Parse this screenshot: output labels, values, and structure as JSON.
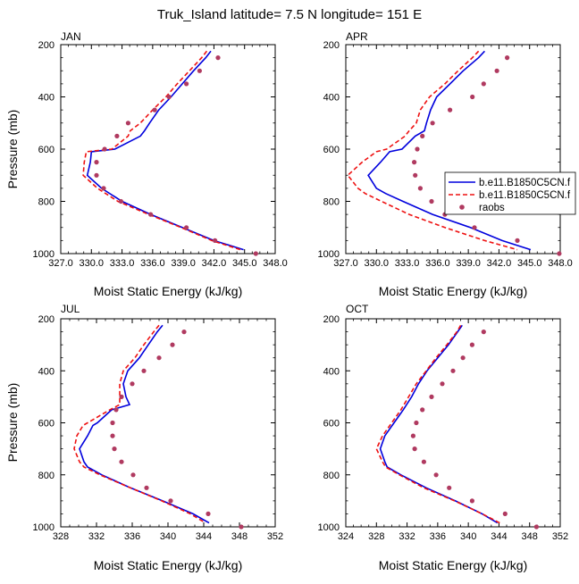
{
  "figure": {
    "title": "Truk_Island  latitude= 7.5 N longitude= 151 E"
  },
  "legend": {
    "entries": [
      {
        "label": "b.e11.B1850C5CN.f",
        "style": "solid-line",
        "color": "#0000dd"
      },
      {
        "label": "b.e11.B1850C5CN.f",
        "style": "dashed-line",
        "color": "#ee1111"
      },
      {
        "label": "raobs",
        "style": "dot",
        "color": "#b03a60"
      }
    ]
  },
  "colors": {
    "model_solid": "#0000dd",
    "model_dashed": "#ee1111",
    "raobs": "#b03a60"
  },
  "chart_data": [
    {
      "type": "line",
      "panel": "JAN",
      "xlabel": "Moist Static Energy (kJ/kg)",
      "ylabel": "Pressure (mb)",
      "xlim": [
        327,
        348
      ],
      "ylim": [
        200,
        1000
      ],
      "y_inverted": true,
      "xticks": [
        "327.0",
        "330.0",
        "333.0",
        "336.0",
        "339.0",
        "342.0",
        "345.0",
        "348.0"
      ],
      "yticks": [
        "200",
        "400",
        "600",
        "800",
        "1000"
      ],
      "pressure": [
        225,
        250,
        300,
        350,
        400,
        450,
        500,
        530,
        550,
        600,
        610,
        650,
        700,
        750,
        800,
        850,
        900,
        950,
        985
      ],
      "series": [
        {
          "values": [
            341.7,
            341.2,
            340.0,
            338.9,
            337.8,
            336.6,
            335.7,
            335.2,
            334.8,
            332.3,
            330.0,
            329.9,
            329.6,
            331.0,
            333.0,
            335.8,
            338.9,
            342.0,
            344.9
          ]
        },
        {
          "values": [
            341.3,
            340.8,
            339.6,
            338.4,
            337.3,
            336.0,
            334.8,
            333.8,
            333.6,
            332.0,
            329.5,
            329.3,
            329.2,
            330.6,
            332.6,
            335.6,
            338.8,
            341.8,
            344.6
          ]
        },
        {
          "pressure": [
            250,
            300,
            350,
            400,
            450,
            500,
            550,
            600,
            650,
            700,
            750,
            800,
            850,
            900,
            950,
            1000
          ],
          "values": [
            342.4,
            340.6,
            339.3,
            337.6,
            336.2,
            333.6,
            332.5,
            331.3,
            330.5,
            330.5,
            331.2,
            332.9,
            335.8,
            339.3,
            342.1,
            346.1
          ]
        }
      ]
    },
    {
      "type": "line",
      "panel": "APR",
      "xlabel": "Moist Static Energy (kJ/kg)",
      "ylabel": "",
      "xlim": [
        327,
        348
      ],
      "ylim": [
        200,
        1000
      ],
      "y_inverted": true,
      "xticks": [
        "327.0",
        "330.0",
        "333.0",
        "336.0",
        "339.0",
        "342.0",
        "345.0",
        "348.0"
      ],
      "yticks": [
        "200",
        "400",
        "600",
        "800",
        "1000"
      ],
      "pressure": [
        225,
        250,
        300,
        350,
        400,
        450,
        500,
        530,
        550,
        600,
        610,
        650,
        700,
        750,
        770,
        800,
        850,
        900,
        950,
        985
      ],
      "series": [
        {
          "values": [
            340.6,
            340.0,
            338.5,
            337.2,
            335.9,
            335.3,
            334.9,
            334.7,
            333.8,
            332.5,
            331.3,
            330.4,
            329.2,
            330.0,
            330.9,
            332.6,
            335.5,
            339.2,
            342.3,
            345.1
          ]
        },
        {
          "values": [
            340.0,
            339.4,
            338.0,
            336.7,
            335.2,
            334.3,
            333.9,
            333.2,
            332.8,
            331.0,
            330.0,
            328.6,
            327.2,
            328.2,
            328.9,
            330.5,
            333.2,
            336.7,
            340.6,
            343.8
          ]
        },
        {
          "pressure": [
            250,
            300,
            350,
            400,
            450,
            500,
            550,
            600,
            650,
            700,
            750,
            800,
            850,
            900,
            950,
            1000
          ],
          "values": [
            342.8,
            341.8,
            340.5,
            339.4,
            337.2,
            335.5,
            334.5,
            334.0,
            333.7,
            333.8,
            334.3,
            335.4,
            336.7,
            339.6,
            343.8,
            347.9
          ]
        }
      ]
    },
    {
      "type": "line",
      "panel": "JUL",
      "xlabel": "Moist Static Energy (kJ/kg)",
      "ylabel": "Pressure (mb)",
      "xlim": [
        328,
        352
      ],
      "ylim": [
        200,
        1000
      ],
      "y_inverted": true,
      "xticks": [
        "328",
        "332",
        "336",
        "340",
        "344",
        "348",
        "352"
      ],
      "yticks": [
        "200",
        "400",
        "600",
        "800",
        "1000"
      ],
      "pressure": [
        225,
        250,
        300,
        350,
        400,
        450,
        500,
        530,
        550,
        600,
        610,
        650,
        700,
        750,
        770,
        800,
        850,
        900,
        950,
        985
      ],
      "series": [
        {
          "values": [
            339.4,
            338.8,
            337.8,
            336.8,
            335.5,
            335.0,
            335.3,
            335.7,
            333.7,
            332.1,
            331.6,
            331.0,
            330.1,
            330.6,
            331.0,
            332.6,
            335.8,
            339.4,
            342.8,
            344.6
          ]
        },
        {
          "values": [
            339.0,
            338.4,
            337.3,
            336.3,
            335.0,
            334.6,
            334.6,
            334.6,
            333.5,
            331.0,
            330.5,
            329.8,
            329.5,
            330.1,
            330.6,
            332.4,
            335.8,
            339.3,
            342.5,
            344.2
          ]
        },
        {
          "pressure": [
            250,
            300,
            350,
            400,
            450,
            500,
            550,
            600,
            650,
            700,
            750,
            800,
            850,
            900,
            950,
            1000
          ],
          "values": [
            341.8,
            340.5,
            339.0,
            337.3,
            336.0,
            334.8,
            334.2,
            333.8,
            333.8,
            334.0,
            334.8,
            336.1,
            337.6,
            340.3,
            344.5,
            348.2
          ]
        }
      ]
    },
    {
      "type": "line",
      "panel": "OCT",
      "xlabel": "Moist Static Energy (kJ/kg)",
      "ylabel": "",
      "xlim": [
        324,
        352
      ],
      "ylim": [
        200,
        1000
      ],
      "y_inverted": true,
      "xticks": [
        "324",
        "328",
        "332",
        "336",
        "340",
        "344",
        "348",
        "352"
      ],
      "yticks": [
        "200",
        "400",
        "600",
        "800",
        "1000"
      ],
      "pressure": [
        225,
        250,
        300,
        350,
        400,
        450,
        500,
        550,
        600,
        650,
        700,
        750,
        770,
        800,
        850,
        900,
        950,
        985
      ],
      "series": [
        {
          "values": [
            339.2,
            338.6,
            337.4,
            336.0,
            334.6,
            333.5,
            332.6,
            331.5,
            330.3,
            329.1,
            328.5,
            329.1,
            329.4,
            331.2,
            334.5,
            338.3,
            341.8,
            343.8
          ]
        },
        {
          "values": [
            339.0,
            338.5,
            337.2,
            335.8,
            334.5,
            333.2,
            332.2,
            331.2,
            330.0,
            328.8,
            328.0,
            328.8,
            329.2,
            331.0,
            334.2,
            338.2,
            341.8,
            344.1
          ]
        },
        {
          "pressure": [
            250,
            300,
            350,
            400,
            450,
            500,
            550,
            600,
            650,
            700,
            750,
            800,
            850,
            900,
            950,
            1000
          ],
          "values": [
            342.0,
            340.5,
            339.3,
            338.0,
            336.6,
            335.2,
            334.0,
            333.2,
            332.8,
            333.0,
            334.2,
            335.8,
            337.5,
            340.5,
            344.8,
            348.9
          ]
        }
      ]
    }
  ]
}
